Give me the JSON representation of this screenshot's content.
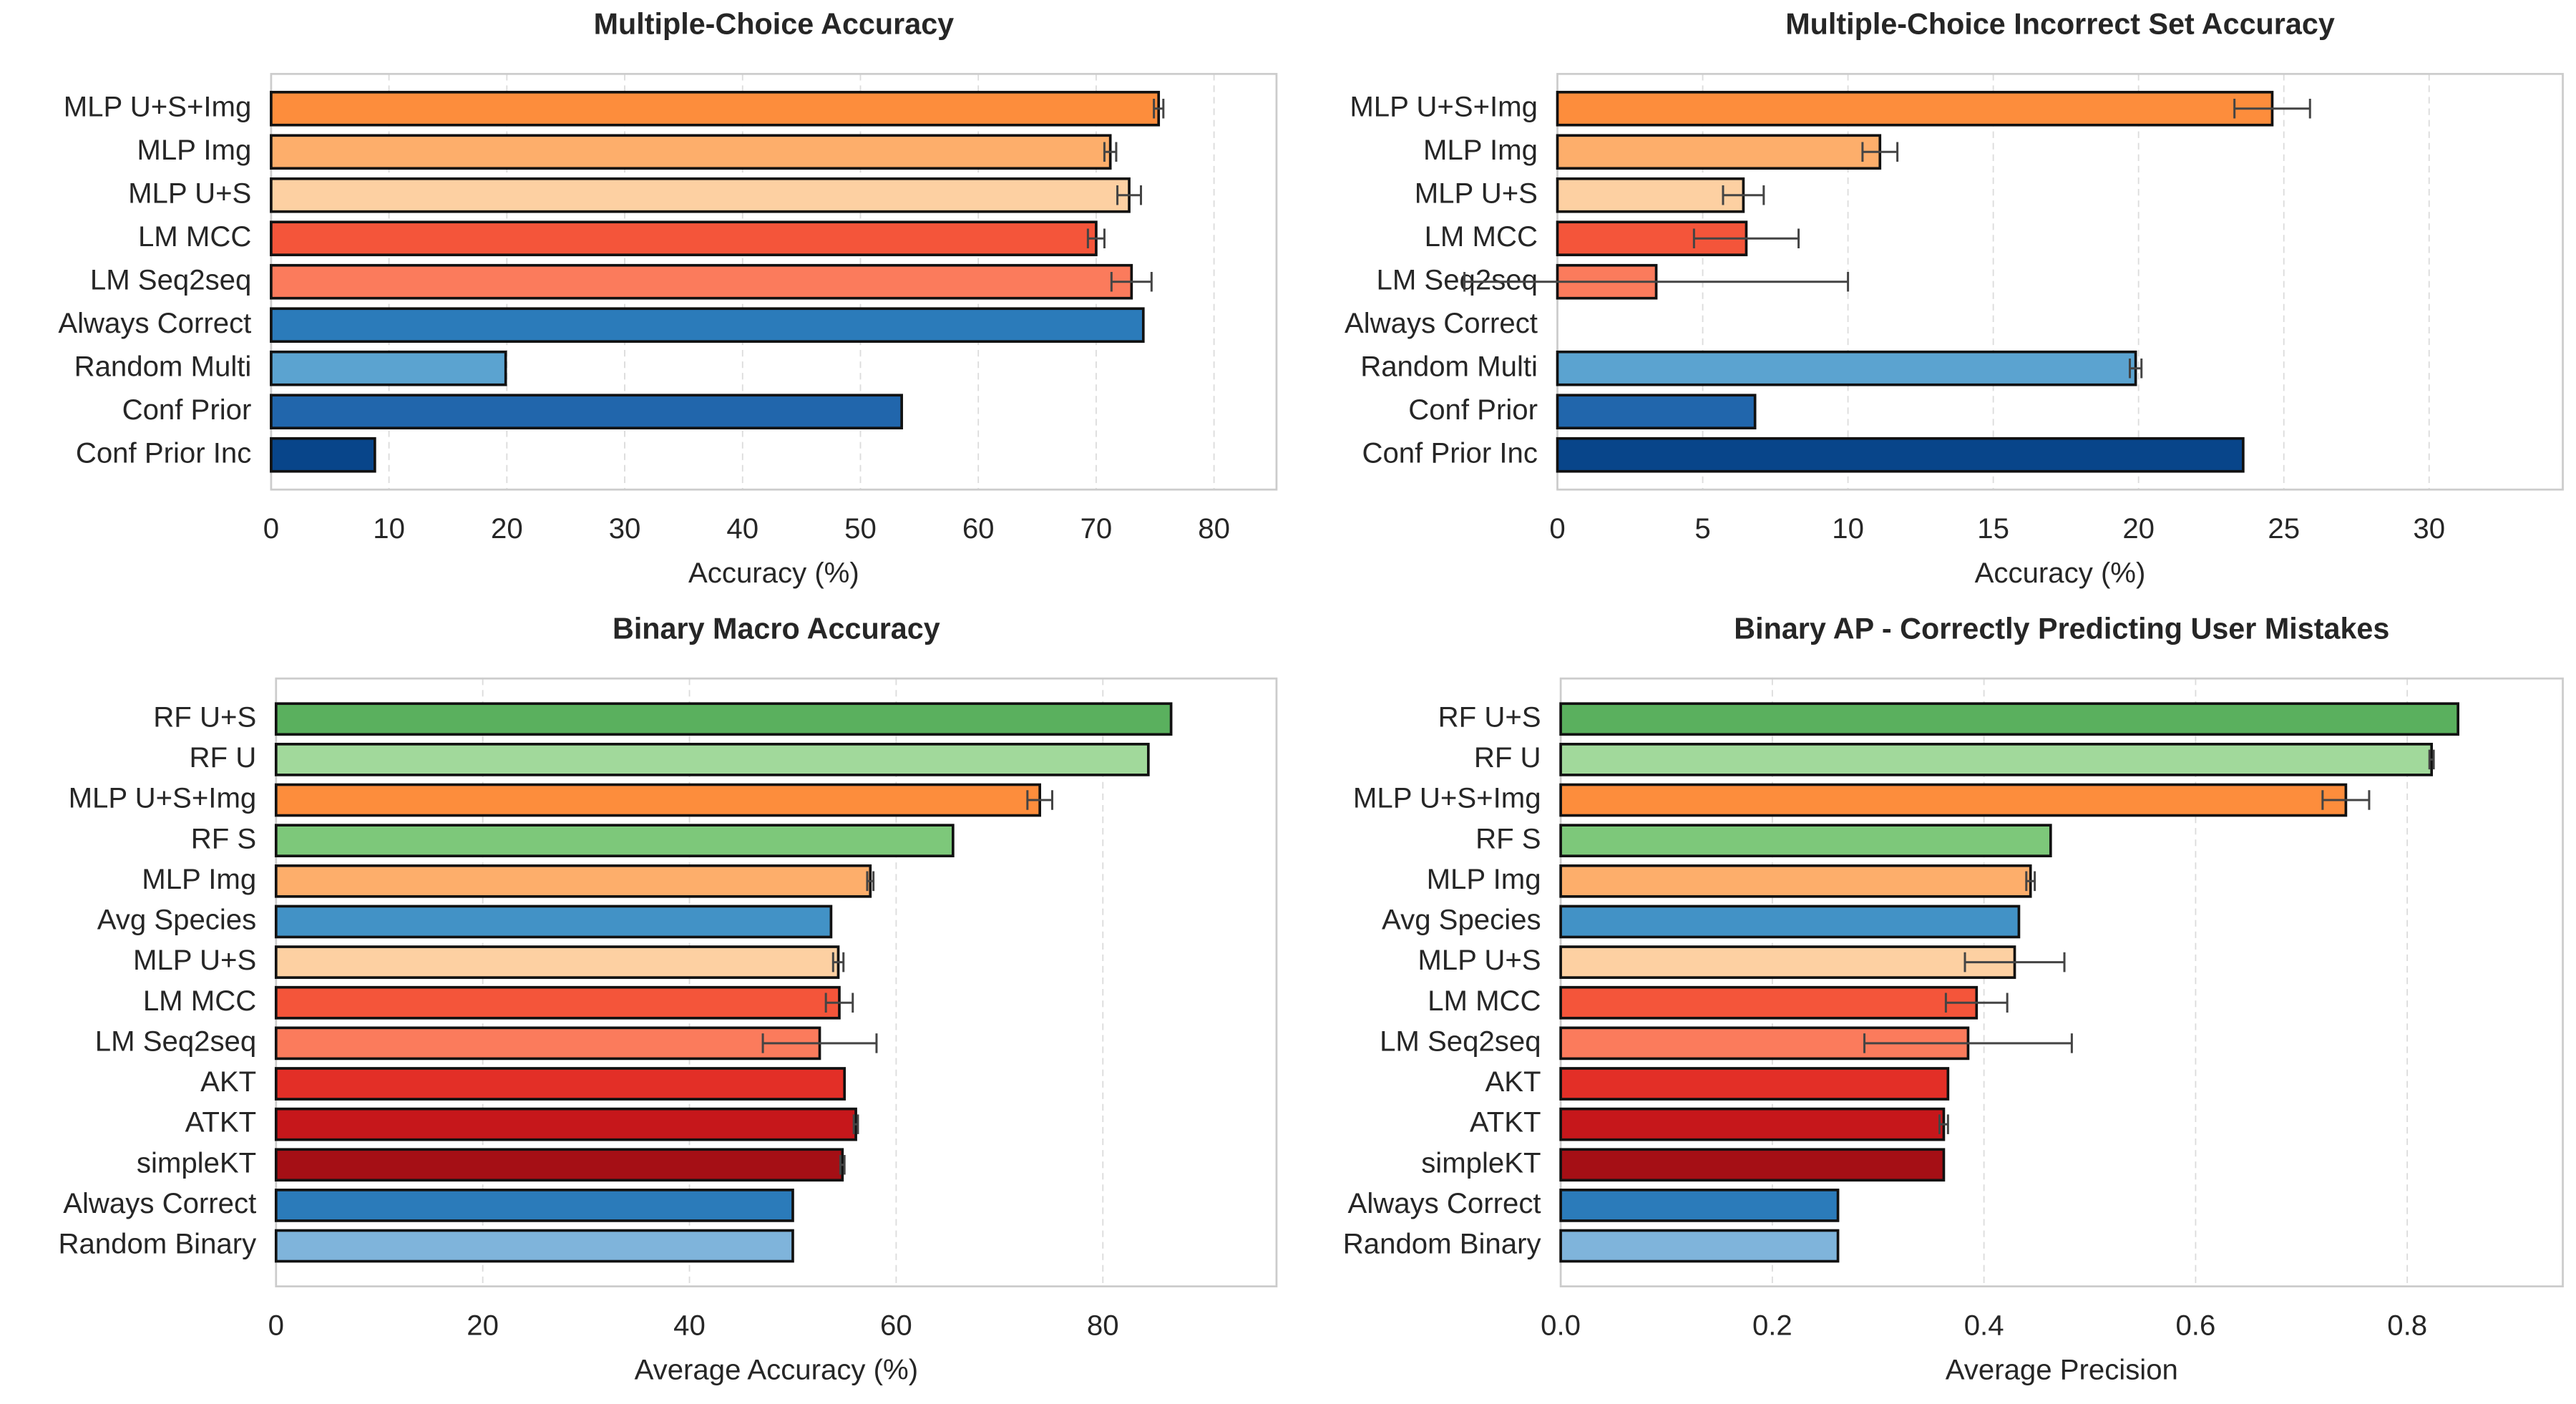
{
  "chart_data": [
    {
      "type": "bar",
      "orientation": "horizontal",
      "title": "Multiple-Choice Accuracy",
      "xlabel": "Accuracy (%)",
      "categories": [
        "MLP U+S+Img",
        "MLP Img",
        "MLP U+S",
        "LM MCC",
        "LM Seq2seq",
        "Always Correct",
        "Random Multi",
        "Conf Prior",
        "Conf Prior Inc"
      ],
      "values": [
        75.3,
        71.2,
        72.8,
        70.0,
        73.0,
        74.0,
        19.9,
        53.5,
        8.8
      ],
      "errors": [
        0.4,
        0.5,
        1.0,
        0.7,
        1.7,
        null,
        null,
        null,
        null
      ],
      "colors": [
        "#fd8d3c",
        "#fdae6b",
        "#fdd0a2",
        "#f4553a",
        "#fb7b5c",
        "#2b7bba",
        "#5ba3d0",
        "#2166ac",
        "#08458a"
      ],
      "xlim": [
        0,
        85.3
      ],
      "xticks": [
        0,
        10,
        20,
        30,
        40,
        50,
        60,
        70,
        80
      ],
      "grid": true
    },
    {
      "type": "bar",
      "orientation": "horizontal",
      "title": "Multiple-Choice Incorrect Set Accuracy",
      "xlabel": "Accuracy (%)",
      "categories": [
        "MLP U+S+Img",
        "MLP Img",
        "MLP U+S",
        "LM MCC",
        "LM Seq2seq",
        "Always Correct",
        "Random Multi",
        "Conf Prior",
        "Conf Prior Inc"
      ],
      "values": [
        24.6,
        11.1,
        6.4,
        6.5,
        3.4,
        0,
        19.9,
        6.8,
        23.6
      ],
      "errors": [
        1.3,
        0.6,
        0.7,
        1.8,
        6.6,
        null,
        0.2,
        null,
        null
      ],
      "colors": [
        "#fd8d3c",
        "#fdae6b",
        "#fdd0a2",
        "#f4553a",
        "#fb7b5c",
        "#2b7bba",
        "#5ba3d0",
        "#2166ac",
        "#08458a"
      ],
      "xlim": [
        0,
        34.6
      ],
      "xticks": [
        0,
        5,
        10,
        15,
        20,
        25,
        30
      ],
      "grid": true
    },
    {
      "type": "bar",
      "orientation": "horizontal",
      "title": "Binary Macro Accuracy",
      "xlabel": "Average Accuracy (%)",
      "categories": [
        "RF U+S",
        "RF U",
        "MLP U+S+Img",
        "RF S",
        "MLP Img",
        "Avg Species",
        "MLP U+S",
        "LM MCC",
        "LM Seq2seq",
        "AKT",
        "ATKT",
        "simpleKT",
        "Always Correct",
        "Random Binary"
      ],
      "values": [
        86.6,
        84.4,
        73.9,
        65.5,
        57.5,
        53.7,
        54.4,
        54.5,
        52.6,
        55.0,
        56.1,
        54.8,
        50.0,
        50.0
      ],
      "errors": [
        null,
        null,
        1.2,
        null,
        0.3,
        null,
        0.5,
        1.3,
        5.5,
        null,
        0.2,
        0.2,
        null,
        null
      ],
      "colors": [
        "#5ab05e",
        "#a1d99b",
        "#fd8d3c",
        "#7dc87a",
        "#fdae6b",
        "#4292c6",
        "#fdd0a2",
        "#f4553a",
        "#fb7b5c",
        "#e32f27",
        "#c6171b",
        "#a50f15",
        "#2b7bba",
        "#7fb4db"
      ],
      "xlim": [
        0,
        96.8
      ],
      "xticks": [
        0,
        20,
        40,
        60,
        80
      ],
      "grid": true
    },
    {
      "type": "bar",
      "orientation": "horizontal",
      "title": "Binary AP - Correctly Predicting User Mistakes",
      "xlabel": "Average Precision",
      "categories": [
        "RF U+S",
        "RF U",
        "MLP U+S+Img",
        "RF S",
        "MLP Img",
        "Avg Species",
        "MLP U+S",
        "LM MCC",
        "LM Seq2seq",
        "AKT",
        "ATKT",
        "simpleKT",
        "Always Correct",
        "Random Binary"
      ],
      "values": [
        0.848,
        0.823,
        0.742,
        0.463,
        0.444,
        0.433,
        0.429,
        0.393,
        0.385,
        0.366,
        0.362,
        0.362,
        0.262,
        0.262
      ],
      "errors": [
        null,
        0.002,
        0.022,
        null,
        0.004,
        null,
        0.047,
        0.029,
        0.098,
        null,
        0.004,
        null,
        null,
        null
      ],
      "colors": [
        "#5ab05e",
        "#a1d99b",
        "#fd8d3c",
        "#7dc87a",
        "#fdae6b",
        "#4292c6",
        "#fdd0a2",
        "#f4553a",
        "#fb7b5c",
        "#e32f27",
        "#c6171b",
        "#a50f15",
        "#2b7bba",
        "#7fb4db"
      ],
      "xlim": [
        0,
        0.947
      ],
      "xticks": [
        {
          "value": 0,
          "label": "0.0"
        },
        {
          "value": 0.2,
          "label": "0.2"
        },
        {
          "value": 0.4,
          "label": "0.4"
        },
        {
          "value": 0.6,
          "label": "0.6"
        },
        {
          "value": 0.8,
          "label": "0.8"
        }
      ],
      "grid": true
    }
  ]
}
